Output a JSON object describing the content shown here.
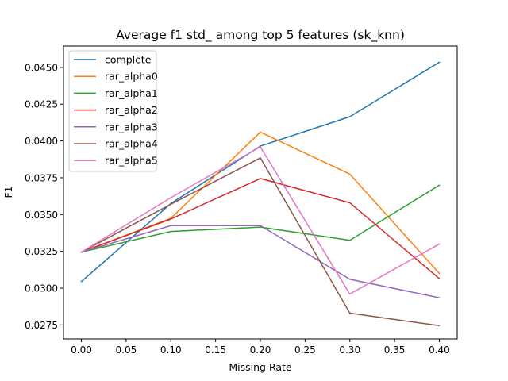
{
  "chart_data": {
    "type": "line",
    "title": "Average f1 std_ among top 5 features (sk_knn)",
    "xlabel": "Missing Rate",
    "ylabel": "F1",
    "x": [
      0.0,
      0.1,
      0.2,
      0.3,
      0.4
    ],
    "xlim": [
      -0.02,
      0.42
    ],
    "ylim": [
      0.02655,
      0.04645
    ],
    "xticks": [
      0.0,
      0.05,
      0.1,
      0.15,
      0.2,
      0.25,
      0.3,
      0.35,
      0.4
    ],
    "xtick_labels": [
      "0.00",
      "0.05",
      "0.10",
      "0.15",
      "0.20",
      "0.25",
      "0.30",
      "0.35",
      "0.40"
    ],
    "yticks": [
      0.0275,
      0.03,
      0.0325,
      0.035,
      0.0375,
      0.04,
      0.0425,
      0.045
    ],
    "ytick_labels": [
      "0.0275",
      "0.0300",
      "0.0325",
      "0.0350",
      "0.0375",
      "0.0400",
      "0.0425",
      "0.0450"
    ],
    "grid": false,
    "legend_position": "top-left",
    "series": [
      {
        "name": "complete",
        "color": "#1f77b4",
        "values": [
          0.03045,
          0.03575,
          0.03965,
          0.04165,
          0.04535
        ]
      },
      {
        "name": "rar_alpha0",
        "color": "#ff7f0e",
        "values": [
          0.03245,
          0.03475,
          0.0406,
          0.03775,
          0.031
        ]
      },
      {
        "name": "rar_alpha1",
        "color": "#2ca02c",
        "values": [
          0.03245,
          0.03385,
          0.03415,
          0.03325,
          0.037
        ]
      },
      {
        "name": "rar_alpha2",
        "color": "#d62728",
        "values": [
          0.03245,
          0.0347,
          0.03745,
          0.0358,
          0.03065
        ]
      },
      {
        "name": "rar_alpha3",
        "color": "#9467bd",
        "values": [
          0.03245,
          0.03425,
          0.03425,
          0.0306,
          0.02935
        ]
      },
      {
        "name": "rar_alpha4",
        "color": "#8c564b",
        "values": [
          0.03245,
          0.0357,
          0.03885,
          0.0283,
          0.02745
        ]
      },
      {
        "name": "rar_alpha5",
        "color": "#e377c2",
        "values": [
          0.03245,
          0.03615,
          0.0396,
          0.0296,
          0.033
        ]
      }
    ]
  }
}
